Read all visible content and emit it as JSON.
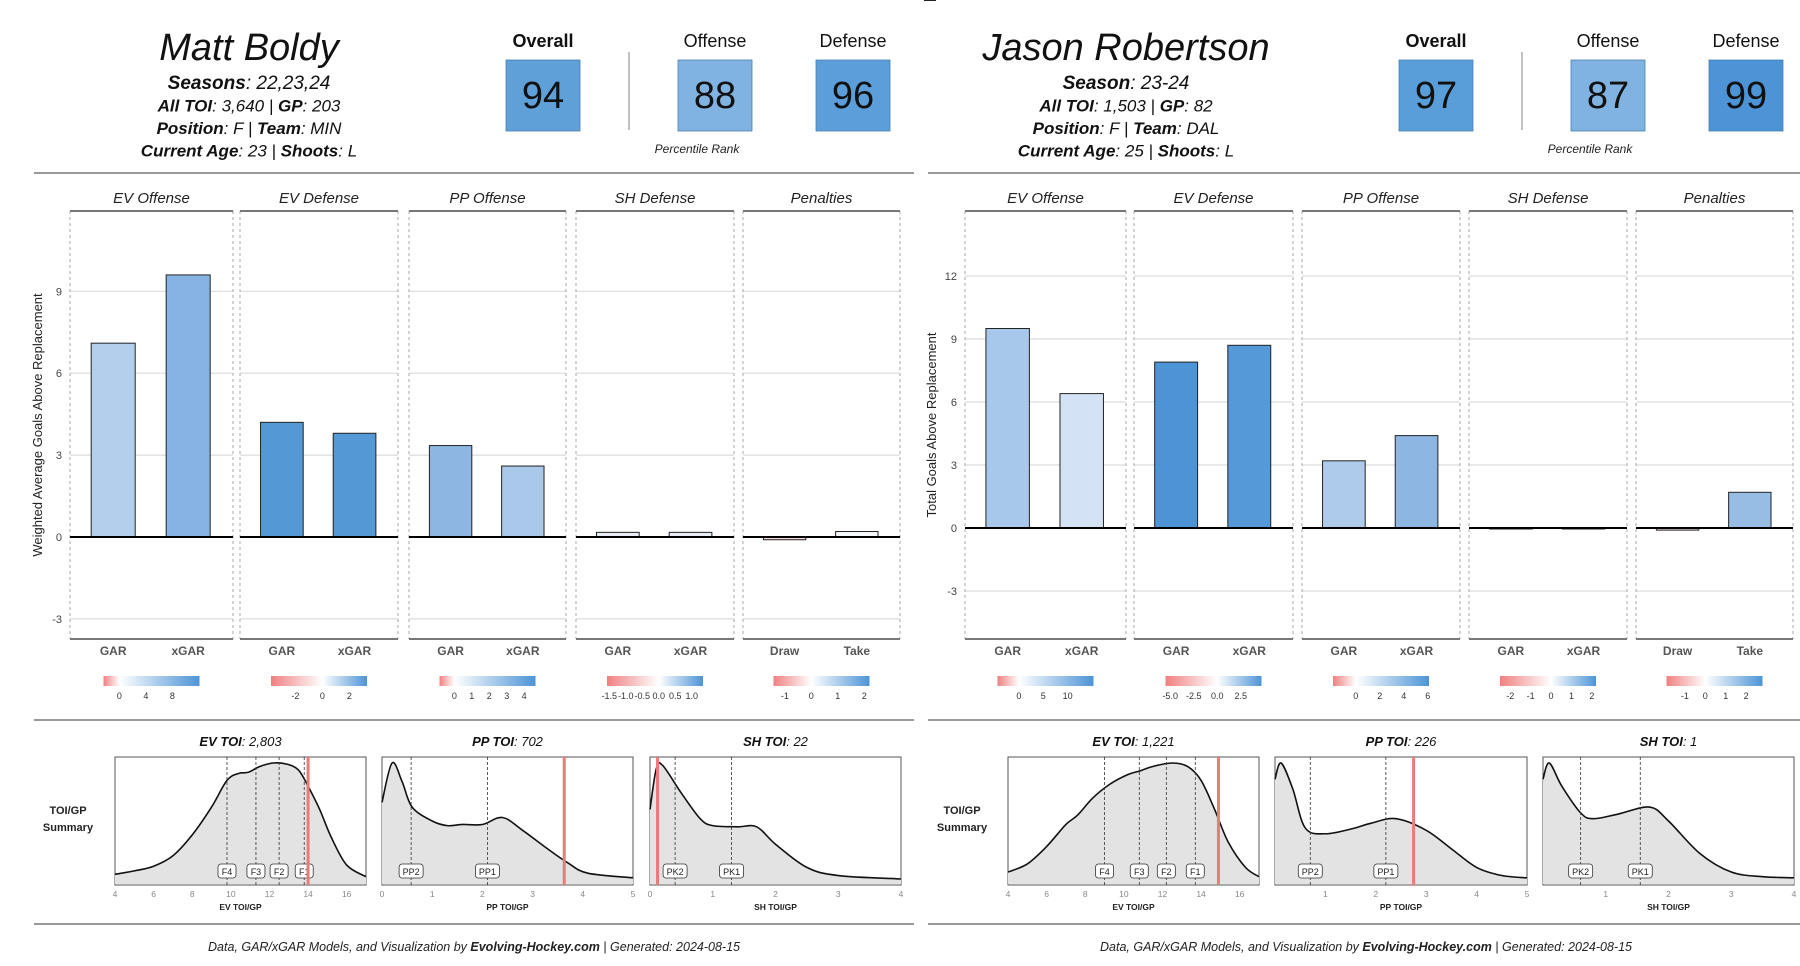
{
  "players": [
    {
      "name": "Matt Boldy",
      "lines": [
        [
          [
            "Seasons",
            "22,23,24"
          ]
        ],
        [
          [
            "All TOI",
            "3,640"
          ],
          [
            "GP",
            "203"
          ]
        ],
        [
          [
            "Position",
            "F"
          ],
          [
            "Team",
            "MIN"
          ]
        ],
        [
          [
            "Current Age",
            "23"
          ],
          [
            "Shoots",
            "L"
          ]
        ]
      ],
      "ratings": [
        {
          "label": "Overall",
          "value": "94",
          "color": "#5fa0d8"
        },
        {
          "label": "Offense",
          "value": "88",
          "color": "#80b3e1"
        },
        {
          "label": "Defense",
          "value": "96",
          "color": "#5b9ed9"
        }
      ],
      "percentile_label": "Percentile Rank",
      "chart_data": {
        "type": "bar",
        "ylabel": "Weighted Average Goals Above Replacement",
        "yticks": [
          -3,
          0,
          3,
          6,
          9
        ],
        "ylim": [
          -3.74,
          11.9
        ],
        "facets": [
          {
            "title": "EV Offense",
            "bars": [
              {
                "label": "GAR",
                "value": 7.1,
                "color": "#b3cfec"
              },
              {
                "label": "xGAR",
                "value": 9.6,
                "color": "#86b3e2"
              }
            ],
            "legend": {
              "lim": [
                -2.4,
                12.1
              ],
              "ticks": [
                "0",
                "4",
                "8"
              ],
              "tick_values": [
                0,
                4,
                8
              ]
            }
          },
          {
            "title": "EV Defense",
            "bars": [
              {
                "label": "GAR",
                "value": 4.2,
                "color": "#5499d5"
              },
              {
                "label": "xGAR",
                "value": 3.8,
                "color": "#5499d5"
              }
            ],
            "legend": {
              "lim": [
                -3.8,
                3.3
              ],
              "ticks": [
                "-2",
                "0",
                "2"
              ],
              "tick_values": [
                -2,
                0,
                2
              ]
            }
          },
          {
            "title": "PP Offense",
            "bars": [
              {
                "label": "GAR",
                "value": 3.35,
                "color": "#8db6e2"
              },
              {
                "label": "xGAR",
                "value": 2.6,
                "color": "#a9c8ea"
              }
            ],
            "legend": {
              "lim": [
                -0.85,
                4.65
              ],
              "ticks": [
                "0",
                "1",
                "2",
                "3",
                "4"
              ],
              "tick_values": [
                0,
                1,
                2,
                3,
                4
              ]
            }
          },
          {
            "title": "SH Defense",
            "bars": [
              {
                "label": "GAR",
                "value": 0.17,
                "color": "#e8eef8"
              },
              {
                "label": "xGAR",
                "value": 0.17,
                "color": "#e8eef8"
              }
            ],
            "legend": {
              "lim": [
                -1.57,
                1.34
              ],
              "ticks": [
                "-1.5",
                "-1.0",
                "-0.5",
                "0.0",
                "0.5",
                "1.0"
              ],
              "tick_values": [
                -1.5,
                -1.0,
                -0.5,
                0.0,
                0.5,
                1.0
              ]
            }
          },
          {
            "title": "Penalties",
            "bars": [
              {
                "label": "Draw",
                "value": -0.1,
                "color": "#f8dede"
              },
              {
                "label": "Take",
                "value": 0.2,
                "color": "#f6f9fd"
              }
            ],
            "legend": {
              "lim": [
                -1.43,
                2.2
              ],
              "ticks": [
                "-1",
                "0",
                "1",
                "2"
              ],
              "tick_values": [
                -1,
                0,
                1,
                2
              ]
            }
          }
        ]
      },
      "toi": [
        {
          "title": "EV TOI",
          "value": "2,803",
          "xlabel": "EV TOI/GP",
          "xlim": [
            4,
            17
          ],
          "xticks": [
            4,
            6,
            8,
            10,
            12,
            14,
            16
          ],
          "curve": [
            [
              4,
              0.04
            ],
            [
              5,
              0.07
            ],
            [
              6,
              0.11
            ],
            [
              7,
              0.2
            ],
            [
              8,
              0.38
            ],
            [
              9,
              0.62
            ],
            [
              9.8,
              0.85
            ],
            [
              10.4,
              0.91
            ],
            [
              10.9,
              0.92
            ],
            [
              11.5,
              0.97
            ],
            [
              12.2,
              1.0
            ],
            [
              12.9,
              0.99
            ],
            [
              13.5,
              0.94
            ],
            [
              14,
              0.8
            ],
            [
              14.6,
              0.6
            ],
            [
              15.2,
              0.36
            ],
            [
              16,
              0.12
            ],
            [
              17,
              0.02
            ]
          ],
          "markers": [
            {
              "label": "F4",
              "x": 9.8
            },
            {
              "label": "F3",
              "x": 11.3
            },
            {
              "label": "F2",
              "x": 12.5
            },
            {
              "label": "F1",
              "x": 13.8
            }
          ],
          "player_x": 14.0
        },
        {
          "title": "PP TOI",
          "value": "702",
          "xlabel": "PP TOI/GP",
          "xlim": [
            0,
            5
          ],
          "xticks": [
            0,
            1,
            2,
            3,
            4,
            5
          ],
          "curve": [
            [
              0,
              0.66
            ],
            [
              0.2,
              1.0
            ],
            [
              0.4,
              0.84
            ],
            [
              0.6,
              0.62
            ],
            [
              1,
              0.5
            ],
            [
              1.3,
              0.46
            ],
            [
              1.6,
              0.47
            ],
            [
              2,
              0.47
            ],
            [
              2.4,
              0.53
            ],
            [
              2.8,
              0.42
            ],
            [
              3.3,
              0.26
            ],
            [
              3.7,
              0.14
            ],
            [
              4.1,
              0.05
            ],
            [
              5,
              0.01
            ]
          ],
          "markers": [
            {
              "label": "PP2",
              "x": 0.58
            },
            {
              "label": "PP1",
              "x": 2.1
            }
          ],
          "player_x": 3.63
        },
        {
          "title": "SH TOI",
          "value": "22",
          "xlabel": "SH TOI/GP",
          "xlim": [
            0,
            4
          ],
          "xticks": [
            0,
            1,
            2,
            3,
            4
          ],
          "curve": [
            [
              0,
              0.6
            ],
            [
              0.1,
              0.95
            ],
            [
              0.2,
              0.98
            ],
            [
              0.5,
              0.74
            ],
            [
              0.8,
              0.52
            ],
            [
              1,
              0.46
            ],
            [
              1.4,
              0.45
            ],
            [
              1.7,
              0.45
            ],
            [
              2,
              0.3
            ],
            [
              2.5,
              0.1
            ],
            [
              3,
              0.03
            ],
            [
              4,
              0.0
            ]
          ],
          "markers": [
            {
              "label": "PK2",
              "x": 0.4
            },
            {
              "label": "PK1",
              "x": 1.3
            }
          ],
          "player_x": 0.12
        }
      ]
    },
    {
      "name": "Jason Robertson",
      "lines": [
        [
          [
            "Season",
            "23-24"
          ]
        ],
        [
          [
            "All TOI",
            "1,503"
          ],
          [
            "GP",
            "82"
          ]
        ],
        [
          [
            "Position",
            "F"
          ],
          [
            "Team",
            "DAL"
          ]
        ],
        [
          [
            "Current Age",
            "25"
          ],
          [
            "Shoots",
            "L"
          ]
        ]
      ],
      "ratings": [
        {
          "label": "Overall",
          "value": "97",
          "color": "#5a9ed9"
        },
        {
          "label": "Offense",
          "value": "87",
          "color": "#80b3e1"
        },
        {
          "label": "Defense",
          "value": "99",
          "color": "#4d94d6"
        }
      ],
      "percentile_label": "Percentile Rank",
      "chart_data": {
        "type": "bar",
        "ylabel": "Total Goals Above Replacement",
        "yticks": [
          -3,
          0,
          3,
          6,
          9,
          12
        ],
        "ylim": [
          -5.3,
          15.1
        ],
        "facets": [
          {
            "title": "EV Offense",
            "bars": [
              {
                "label": "GAR",
                "value": 9.5,
                "color": "#a8c8eb"
              },
              {
                "label": "xGAR",
                "value": 6.4,
                "color": "#d3e2f4"
              }
            ],
            "legend": {
              "lim": [
                -4.4,
                15.3
              ],
              "ticks": [
                "0",
                "5",
                "10"
              ],
              "tick_values": [
                0,
                5,
                10
              ]
            }
          },
          {
            "title": "EV Defense",
            "bars": [
              {
                "label": "GAR",
                "value": 7.9,
                "color": "#4d94d6"
              },
              {
                "label": "xGAR",
                "value": 8.7,
                "color": "#5599d8"
              }
            ],
            "legend": {
              "lim": [
                -5.5,
                4.7
              ],
              "ticks": [
                "-5.0",
                "-2.5",
                "0.0",
                "2.5"
              ],
              "tick_values": [
                -5,
                -2.5,
                0,
                2.5
              ]
            }
          },
          {
            "title": "PP Offense",
            "bars": [
              {
                "label": "GAR",
                "value": 3.2,
                "color": "#aecbec"
              },
              {
                "label": "xGAR",
                "value": 4.4,
                "color": "#8db6e2"
              }
            ],
            "legend": {
              "lim": [
                -1.9,
                6.1
              ],
              "ticks": [
                "0",
                "2",
                "4",
                "6"
              ],
              "tick_values": [
                0,
                2,
                4,
                6
              ]
            }
          },
          {
            "title": "SH Defense",
            "bars": [
              {
                "label": "GAR",
                "value": 0.0,
                "color": "#ffffff"
              },
              {
                "label": "xGAR",
                "value": 0.0,
                "color": "#ffffff"
              }
            ],
            "legend": {
              "lim": [
                -2.5,
                2.2
              ],
              "ticks": [
                "-2",
                "-1",
                "0",
                "1",
                "2"
              ],
              "tick_values": [
                -2,
                -1,
                0,
                1,
                2
              ]
            }
          },
          {
            "title": "Penalties",
            "bars": [
              {
                "label": "Draw",
                "value": -0.1,
                "color": "#f8e4e4"
              },
              {
                "label": "Take",
                "value": 1.7,
                "color": "#97bde5"
              }
            ],
            "legend": {
              "lim": [
                -1.9,
                2.8
              ],
              "ticks": [
                "-1",
                "0",
                "1",
                "2"
              ],
              "tick_values": [
                -1,
                0,
                1,
                2
              ]
            }
          }
        ]
      },
      "toi": [
        {
          "title": "EV TOI",
          "value": "1,221",
          "xlabel": "EV TOI/GP",
          "xlim": [
            4,
            17
          ],
          "xticks": [
            4,
            6,
            8,
            10,
            12,
            14,
            16
          ],
          "curve": [
            [
              4,
              0.06
            ],
            [
              5,
              0.13
            ],
            [
              6,
              0.28
            ],
            [
              7,
              0.47
            ],
            [
              7.6,
              0.55
            ],
            [
              8.4,
              0.7
            ],
            [
              9.3,
              0.82
            ],
            [
              10.2,
              0.9
            ],
            [
              10.8,
              0.93
            ],
            [
              11.5,
              0.97
            ],
            [
              12.5,
              1.0
            ],
            [
              13.3,
              0.97
            ],
            [
              14,
              0.85
            ],
            [
              14.7,
              0.6
            ],
            [
              15.4,
              0.32
            ],
            [
              16.3,
              0.1
            ],
            [
              17,
              0.02
            ]
          ],
          "markers": [
            {
              "label": "F4",
              "x": 9.0
            },
            {
              "label": "F3",
              "x": 10.8
            },
            {
              "label": "F2",
              "x": 12.2
            },
            {
              "label": "F1",
              "x": 13.7
            }
          ],
          "player_x": 14.9
        },
        {
          "title": "PP TOI",
          "value": "226",
          "xlabel": "PP TOI/GP",
          "xlim": [
            0,
            5
          ],
          "xticks": [
            1,
            2,
            3,
            4,
            5
          ],
          "curve": [
            [
              0,
              0.86
            ],
            [
              0.12,
              1.0
            ],
            [
              0.35,
              0.78
            ],
            [
              0.6,
              0.44
            ],
            [
              1,
              0.39
            ],
            [
              1.5,
              0.43
            ],
            [
              1.9,
              0.48
            ],
            [
              2.4,
              0.52
            ],
            [
              3,
              0.42
            ],
            [
              3.5,
              0.26
            ],
            [
              4,
              0.1
            ],
            [
              4.5,
              0.03
            ],
            [
              5,
              0.01
            ]
          ],
          "markers": [
            {
              "label": "PP2",
              "x": 0.7
            },
            {
              "label": "PP1",
              "x": 2.2
            }
          ],
          "player_x": 2.75
        },
        {
          "title": "SH TOI",
          "value": "1",
          "xlabel": "SH TOI/GP",
          "xlim": [
            0,
            4
          ],
          "xticks": [
            1,
            2,
            3,
            4
          ],
          "curve": [
            [
              0,
              0.86
            ],
            [
              0.1,
              1.0
            ],
            [
              0.3,
              0.8
            ],
            [
              0.6,
              0.57
            ],
            [
              0.8,
              0.52
            ],
            [
              1.2,
              0.56
            ],
            [
              1.7,
              0.62
            ],
            [
              2,
              0.5
            ],
            [
              2.5,
              0.22
            ],
            [
              3,
              0.06
            ],
            [
              3.5,
              0.02
            ],
            [
              4,
              0.01
            ]
          ],
          "markers": [
            {
              "label": "PK2",
              "x": 0.6
            },
            {
              "label": "PK1",
              "x": 1.55
            }
          ],
          "player_x": null
        }
      ]
    }
  ],
  "summary_label": [
    "TOI/GP",
    "Summary"
  ],
  "footer": {
    "prefix": "Data, GAR/xGAR Models, and Visualization by ",
    "site": "Evolving-Hockey.com",
    "suffix": " | Generated: 2024-08-15"
  },
  "colors": {
    "negative": "#f08080",
    "positive": "#4d94d6",
    "player_line": "#e87b7b",
    "density_fill": "#e3e3e3"
  }
}
